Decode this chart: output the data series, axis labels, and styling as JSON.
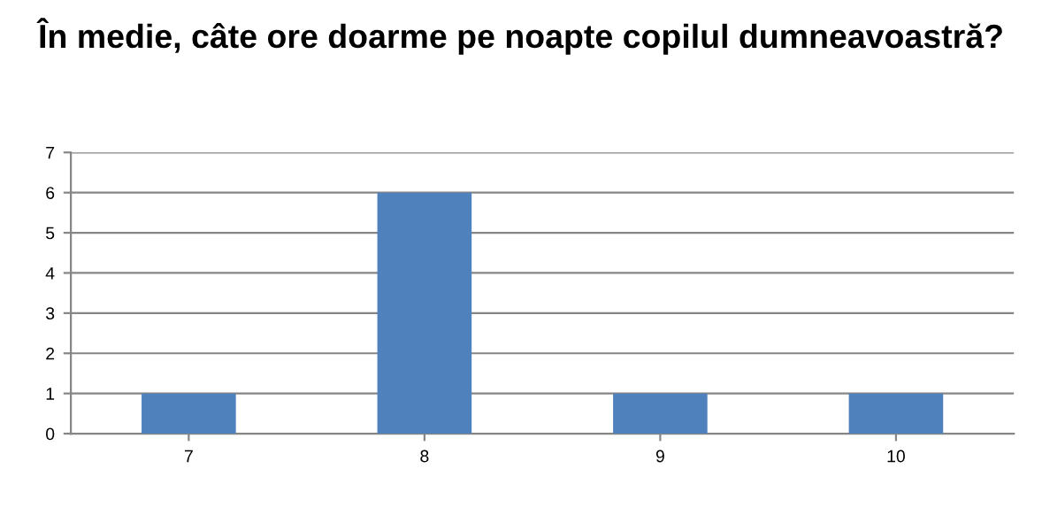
{
  "chart_data": {
    "type": "bar",
    "title": "În medie, câte ore doarme pe noapte copilul dumneavoastră?",
    "categories": [
      "7",
      "8",
      "9",
      "10"
    ],
    "values": [
      1,
      6,
      1,
      1
    ],
    "color": "#4f81bd",
    "ylim": [
      0,
      7
    ],
    "yticks": [
      0,
      1,
      2,
      3,
      4,
      5,
      6,
      7
    ],
    "grid": "y",
    "legend": false
  }
}
